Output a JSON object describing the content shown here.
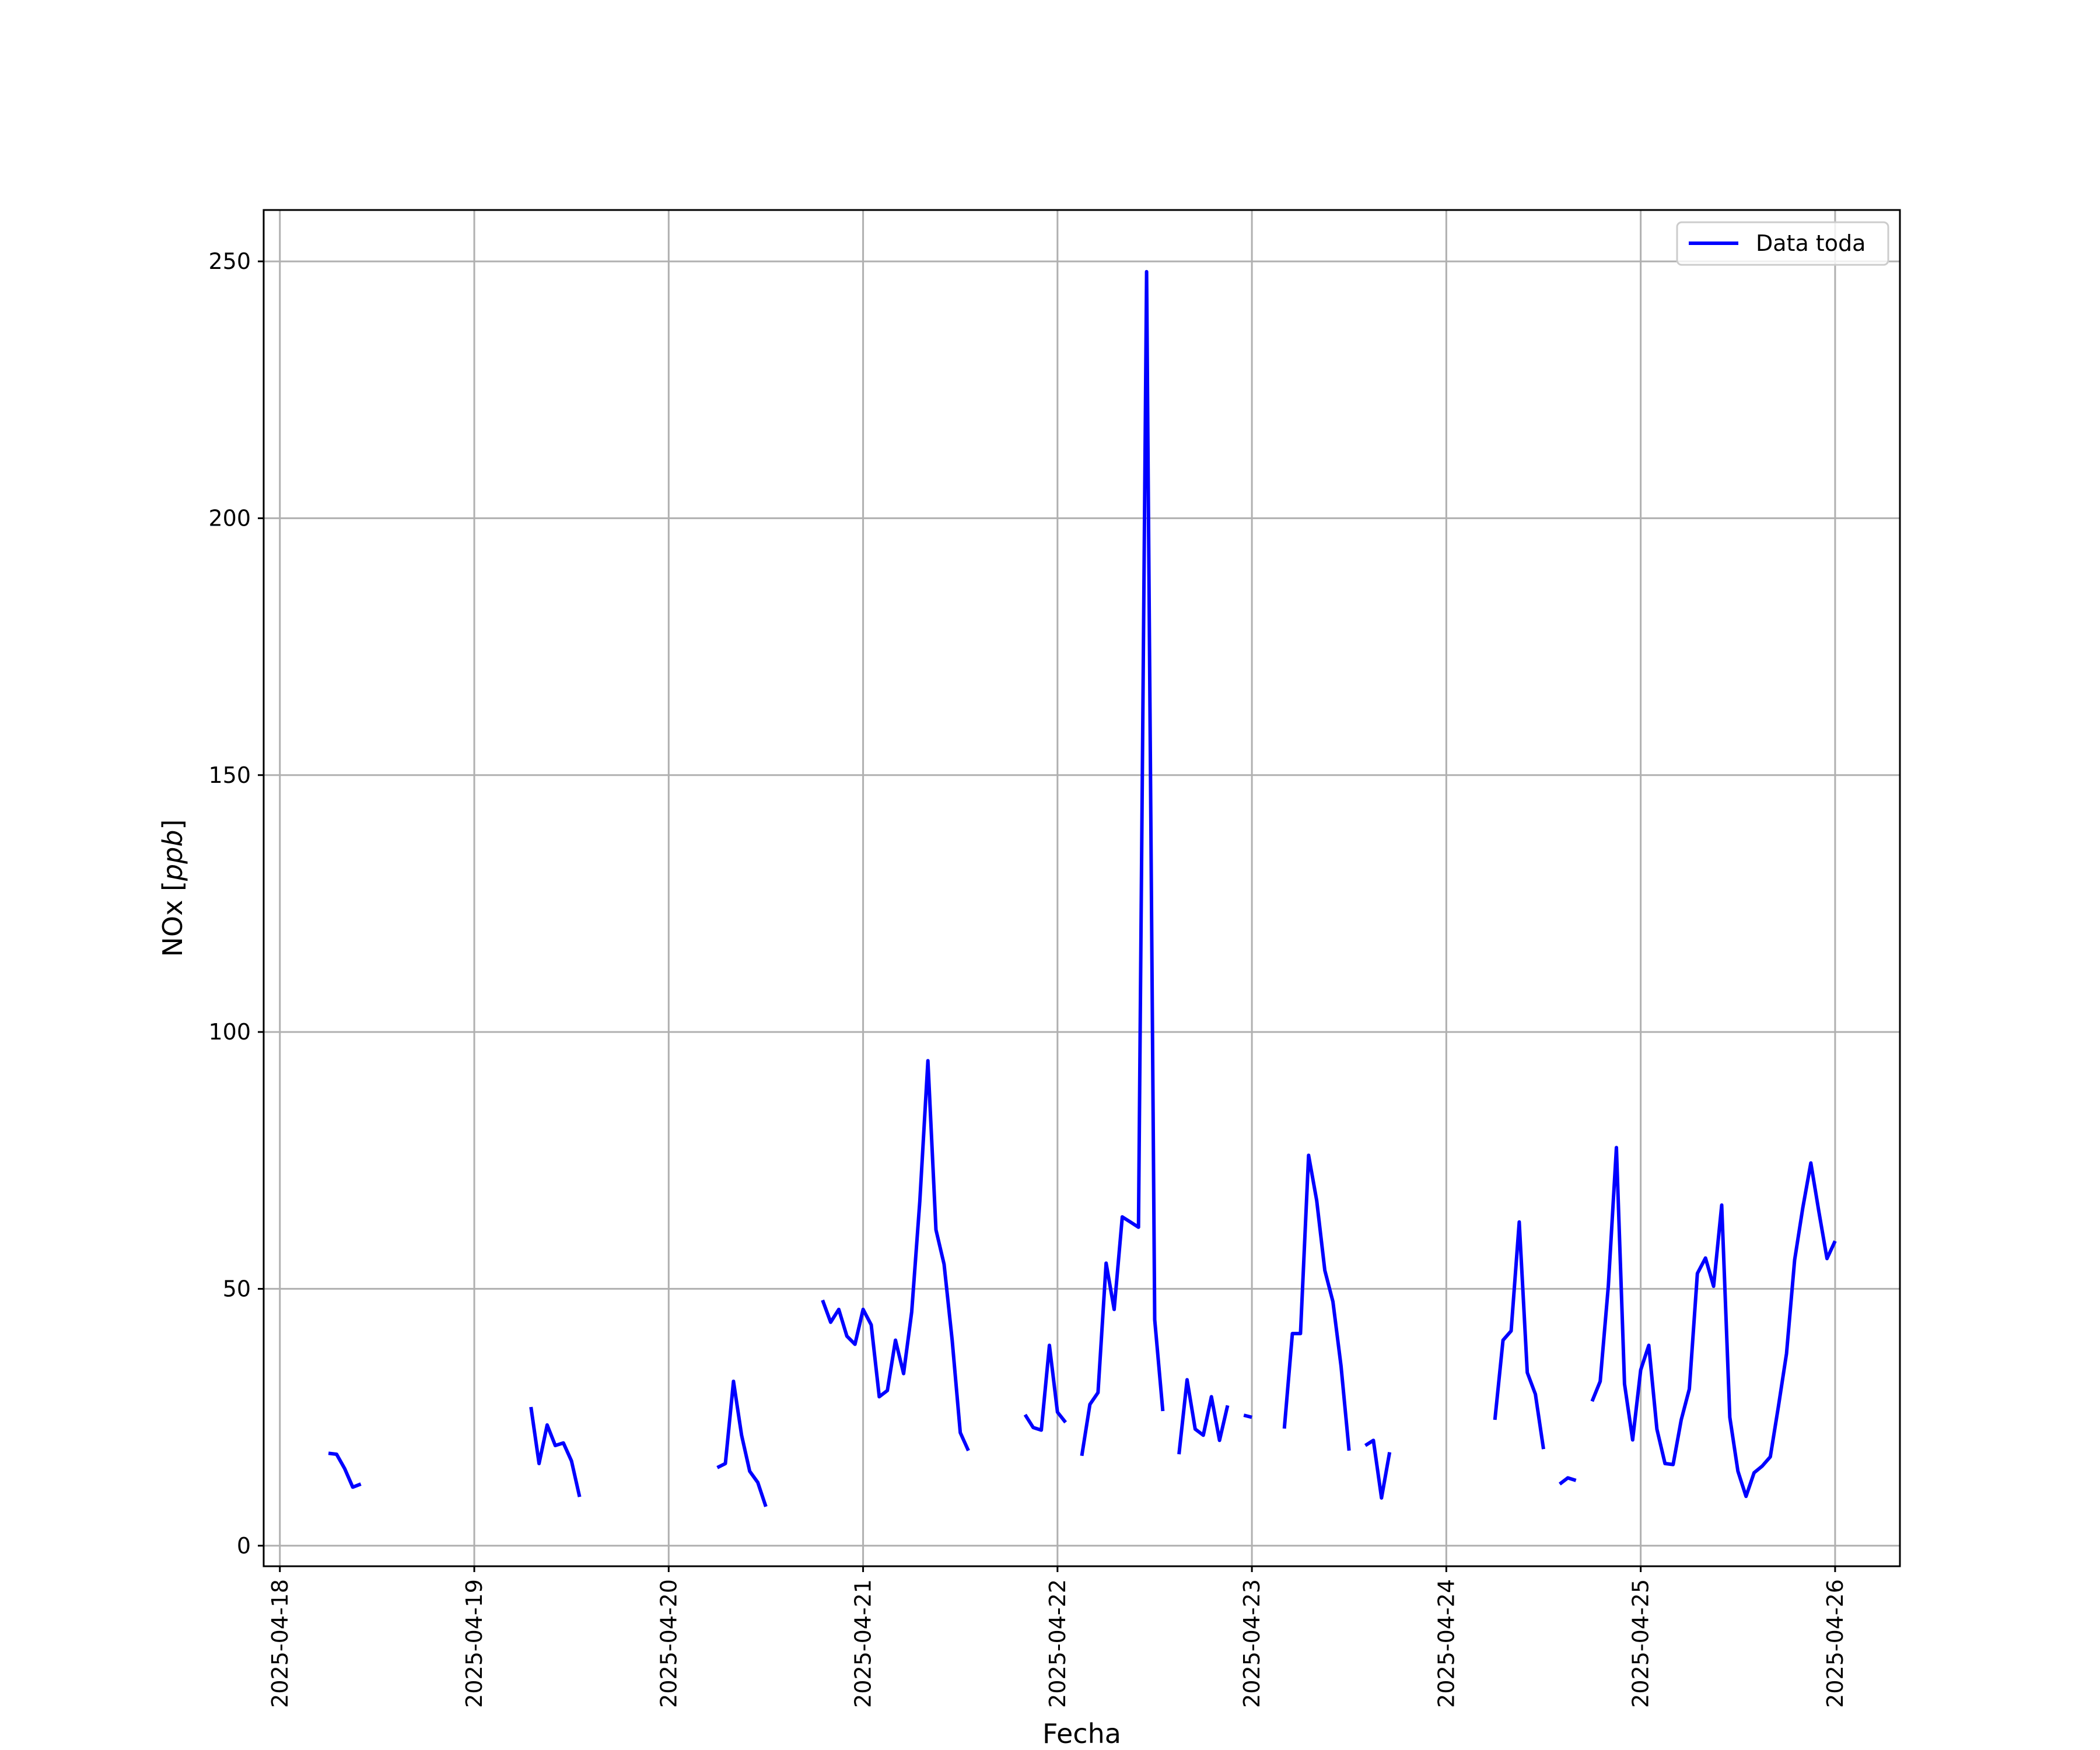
{
  "chart_data": {
    "type": "line",
    "title": "",
    "xlabel": "Fecha",
    "ylabel_main": "NOx [",
    "ylabel_unit": "ppb",
    "ylabel_close": "]",
    "x_start": "2025-04-18",
    "xlim": [
      "2025-04-17 22:00",
      "2025-04-26 08:00"
    ],
    "ylim": [
      -4,
      260
    ],
    "x_ticks": [
      "2025-04-18",
      "2025-04-19",
      "2025-04-20",
      "2025-04-21",
      "2025-04-22",
      "2025-04-23",
      "2025-04-24",
      "2025-04-25",
      "2025-04-26"
    ],
    "y_ticks": [
      "0",
      "50",
      "100",
      "150",
      "200",
      "250"
    ],
    "y_tick_values": [
      0,
      50,
      100,
      150,
      200,
      250
    ],
    "grid": true,
    "legend_position": "top-right",
    "series": [
      {
        "name": "Data toda",
        "color": "#0000ff",
        "segments": [
          [
            [
              "2025-04-18 06:00",
              18
            ],
            [
              "2025-04-18 07:00",
              17.8
            ],
            [
              "2025-04-18 08:00",
              15
            ],
            [
              "2025-04-18 09:00",
              11.4
            ],
            [
              "2025-04-18 10:00",
              12
            ]
          ],
          [
            [
              "2025-04-19 07:00",
              27
            ],
            [
              "2025-04-19 08:00",
              16
            ],
            [
              "2025-04-19 09:00",
              23.5
            ],
            [
              "2025-04-19 10:00",
              19.5
            ],
            [
              "2025-04-19 11:00",
              20
            ],
            [
              "2025-04-19 12:00",
              16.5
            ],
            [
              "2025-04-19 13:00",
              9.5
            ]
          ],
          [
            [
              "2025-04-20 06:00",
              15.2
            ],
            [
              "2025-04-20 07:00",
              16
            ],
            [
              "2025-04-20 08:00",
              32
            ],
            [
              "2025-04-20 09:00",
              21.5
            ],
            [
              "2025-04-20 10:00",
              14.5
            ],
            [
              "2025-04-20 11:00",
              12.3
            ],
            [
              "2025-04-20 12:00",
              7.6
            ]
          ],
          [
            [
              "2025-04-20 19:00",
              47.8
            ],
            [
              "2025-04-20 20:00",
              43.5
            ],
            [
              "2025-04-20 21:00",
              46
            ],
            [
              "2025-04-20 22:00",
              40.8
            ],
            [
              "2025-04-20 23:00",
              39.2
            ],
            [
              "2025-04-21 00:00",
              46
            ],
            [
              "2025-04-21 01:00",
              43
            ],
            [
              "2025-04-21 02:00",
              29
            ],
            [
              "2025-04-21 03:00",
              30.2
            ],
            [
              "2025-04-21 04:00",
              40
            ],
            [
              "2025-04-21 05:00",
              33.5
            ],
            [
              "2025-04-21 06:00",
              45.5
            ],
            [
              "2025-04-21 07:00",
              67
            ],
            [
              "2025-04-21 08:00",
              94.4
            ],
            [
              "2025-04-21 09:00",
              61.5
            ],
            [
              "2025-04-21 10:00",
              54.8
            ],
            [
              "2025-04-21 11:00",
              40
            ],
            [
              "2025-04-21 12:00",
              22
            ],
            [
              "2025-04-21 13:00",
              18.5
            ]
          ],
          [
            [
              "2025-04-21 20:00",
              25.5
            ],
            [
              "2025-04-21 21:00",
              23
            ],
            [
              "2025-04-21 22:00",
              22.5
            ],
            [
              "2025-04-21 23:00",
              39
            ],
            [
              "2025-04-22 00:00",
              26
            ],
            [
              "2025-04-22 01:00",
              24
            ]
          ],
          [
            [
              "2025-04-22 03:00",
              17.5
            ],
            [
              "2025-04-22 04:00",
              27.5
            ],
            [
              "2025-04-22 05:00",
              29.8
            ],
            [
              "2025-04-22 06:00",
              55
            ],
            [
              "2025-04-22 07:00",
              46
            ],
            [
              "2025-04-22 08:00",
              64
            ],
            [
              "2025-04-22 09:00",
              63
            ],
            [
              "2025-04-22 10:00",
              62
            ],
            [
              "2025-04-22 11:00",
              248
            ],
            [
              "2025-04-22 12:00",
              44
            ],
            [
              "2025-04-22 13:00",
              26.2
            ]
          ],
          [
            [
              "2025-04-22 15:00",
              17.8
            ],
            [
              "2025-04-22 16:00",
              32.3
            ],
            [
              "2025-04-22 17:00",
              22.7
            ],
            [
              "2025-04-22 18:00",
              21.5
            ],
            [
              "2025-04-22 19:00",
              29
            ],
            [
              "2025-04-22 20:00",
              20.5
            ],
            [
              "2025-04-22 21:00",
              27.3
            ]
          ],
          [
            [
              "2025-04-22 23:00",
              25.4
            ],
            [
              "2025-04-23 00:00",
              25
            ]
          ],
          [
            [
              "2025-04-23 04:00",
              22.8
            ],
            [
              "2025-04-23 05:00",
              41.3
            ],
            [
              "2025-04-23 06:00",
              41.3
            ],
            [
              "2025-04-23 07:00",
              76
            ],
            [
              "2025-04-23 08:00",
              67.2
            ],
            [
              "2025-04-23 09:00",
              53.6
            ],
            [
              "2025-04-23 10:00",
              47.5
            ],
            [
              "2025-04-23 11:00",
              35
            ],
            [
              "2025-04-23 12:00",
              18.5
            ]
          ],
          [
            [
              "2025-04-23 14:00",
              19.5
            ],
            [
              "2025-04-23 15:00",
              20.5
            ],
            [
              "2025-04-23 16:00",
              9.3
            ],
            [
              "2025-04-23 17:00",
              18.2
            ]
          ],
          [
            [
              "2025-04-24 06:00",
              24.5
            ],
            [
              "2025-04-24 07:00",
              40
            ],
            [
              "2025-04-24 08:00",
              41.8
            ],
            [
              "2025-04-24 09:00",
              63
            ],
            [
              "2025-04-24 10:00",
              33.7
            ],
            [
              "2025-04-24 11:00",
              29.5
            ],
            [
              "2025-04-24 12:00",
              18.8
            ]
          ],
          [
            [
              "2025-04-24 14:00",
              12
            ],
            [
              "2025-04-24 15:00",
              13.2
            ],
            [
              "2025-04-24 16:00",
              12.7
            ]
          ],
          [
            [
              "2025-04-24 18:00",
              28.1
            ],
            [
              "2025-04-24 19:00",
              32
            ],
            [
              "2025-04-24 20:00",
              50.5
            ],
            [
              "2025-04-24 21:00",
              77.5
            ],
            [
              "2025-04-24 22:00",
              31.5
            ],
            [
              "2025-04-24 23:00",
              20.6
            ],
            [
              "2025-04-25 00:00",
              34.2
            ],
            [
              "2025-04-25 01:00",
              39
            ],
            [
              "2025-04-25 02:00",
              22.7
            ],
            [
              "2025-04-25 03:00",
              16
            ],
            [
              "2025-04-25 04:00",
              15.8
            ],
            [
              "2025-04-25 05:00",
              24.5
            ],
            [
              "2025-04-25 06:00",
              30.5
            ],
            [
              "2025-04-25 07:00",
              53
            ],
            [
              "2025-04-25 08:00",
              56
            ],
            [
              "2025-04-25 09:00",
              50.5
            ],
            [
              "2025-04-25 10:00",
              66.3
            ],
            [
              "2025-04-25 11:00",
              25
            ],
            [
              "2025-04-25 12:00",
              14.5
            ],
            [
              "2025-04-25 13:00",
              9.6
            ],
            [
              "2025-04-25 14:00",
              14.2
            ],
            [
              "2025-04-25 15:00",
              15.5
            ],
            [
              "2025-04-25 16:00",
              17.3
            ],
            [
              "2025-04-25 17:00",
              27.1
            ],
            [
              "2025-04-25 18:00",
              37.4
            ],
            [
              "2025-04-25 19:00",
              55.6
            ],
            [
              "2025-04-25 20:00",
              65.7
            ],
            [
              "2025-04-25 21:00",
              74.5
            ],
            [
              "2025-04-25 22:00",
              65
            ],
            [
              "2025-04-25 23:00",
              55.9
            ],
            [
              "2025-04-26 00:00",
              59.3
            ]
          ]
        ]
      }
    ]
  }
}
